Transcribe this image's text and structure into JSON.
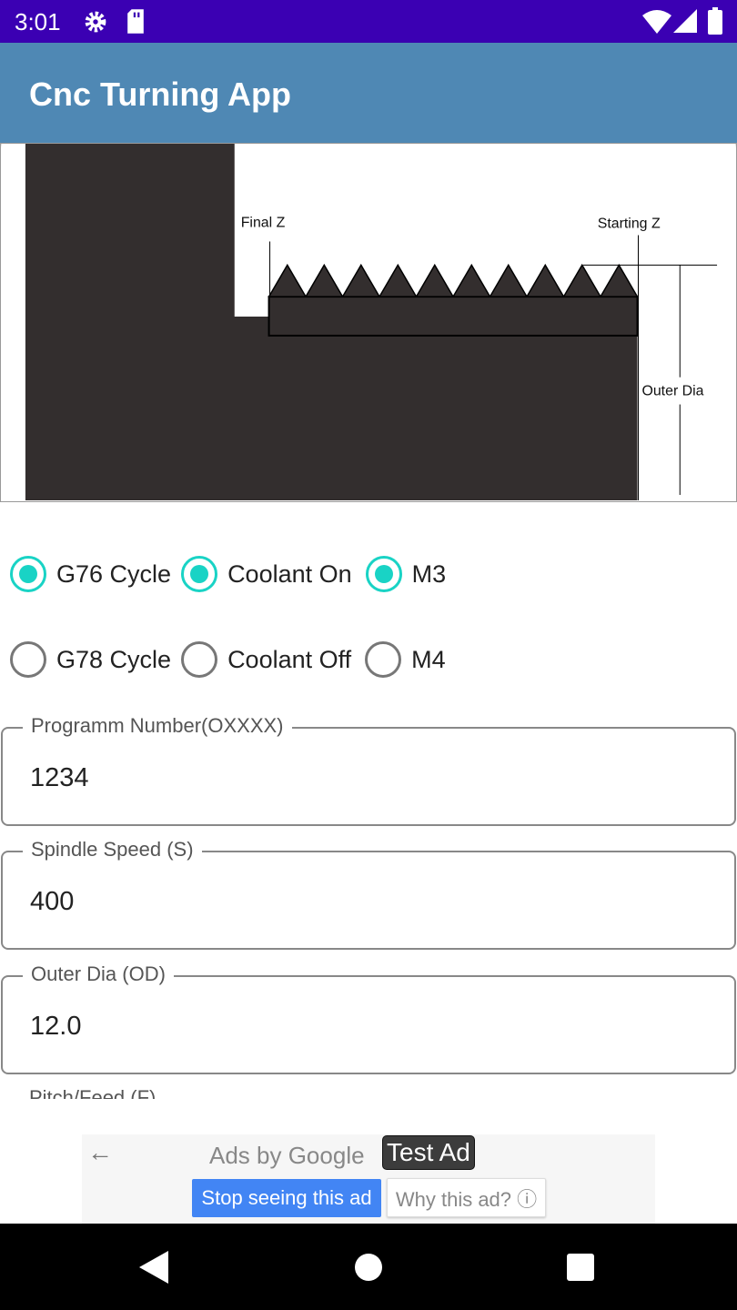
{
  "status_bar": {
    "time": "3:01",
    "icons": [
      "gear-icon",
      "sd-card-icon",
      "wifi-icon",
      "signal-icon",
      "battery-icon"
    ]
  },
  "app_bar": {
    "title": "Cnc Turning App"
  },
  "diagram": {
    "labels": {
      "final_z": "Final Z",
      "starting_z": "Starting Z",
      "outer_dia": "Outer Dia"
    }
  },
  "options": {
    "row1": [
      {
        "label": "G76 Cycle",
        "checked": true
      },
      {
        "label": "Coolant On",
        "checked": true
      },
      {
        "label": "M3",
        "checked": true
      }
    ],
    "row2": [
      {
        "label": "G78 Cycle",
        "checked": false
      },
      {
        "label": "Coolant Off",
        "checked": false
      },
      {
        "label": "M4",
        "checked": false
      }
    ]
  },
  "fields": [
    {
      "label": "Programm Number(OXXXX)",
      "value": "1234"
    },
    {
      "label": "Spindle Speed (S)",
      "value": "400"
    },
    {
      "label": "Outer Dia (OD)",
      "value": "12.0"
    },
    {
      "label": "Pitch/Feed (F)",
      "value": ""
    }
  ],
  "ad": {
    "brand": "Ads by Google",
    "badge": "Test Ad",
    "stop_label": "Stop seeing this ad",
    "why_label": "Why this ad? ⓘ"
  },
  "colors": {
    "status": "#3b00b3",
    "appbar": "#4f88b4",
    "accent": "#19d3c5",
    "ad_button": "#4285f4"
  }
}
